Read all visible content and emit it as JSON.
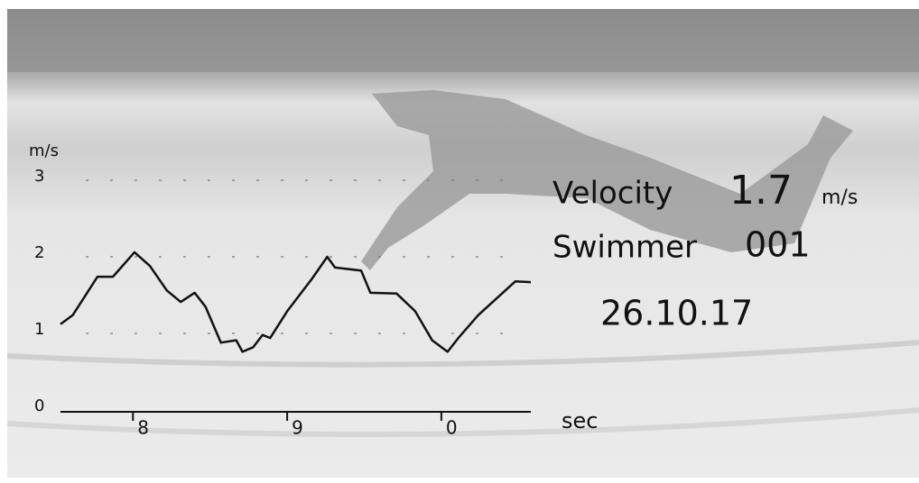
{
  "chart_data": {
    "type": "line",
    "y_label": "m/s",
    "x_label": "sec",
    "x": [
      7.53,
      7.61,
      7.77,
      7.87,
      8.01,
      8.11,
      8.22,
      8.31,
      8.4,
      8.47,
      8.57,
      8.67,
      8.71,
      8.78,
      8.84,
      8.89,
      9.0,
      9.16,
      9.26,
      9.31,
      9.48,
      9.54,
      9.71,
      9.83,
      9.94,
      10.04,
      10.11,
      10.24,
      10.48,
      10.58
    ],
    "values": [
      1.12,
      1.24,
      1.74,
      1.74,
      2.06,
      1.88,
      1.56,
      1.41,
      1.53,
      1.35,
      0.88,
      0.91,
      0.76,
      0.82,
      0.98,
      0.94,
      1.29,
      1.71,
      2.0,
      1.86,
      1.82,
      1.53,
      1.52,
      1.29,
      0.91,
      0.76,
      0.94,
      1.24,
      1.68,
      1.67
    ],
    "color": "#111111",
    "xlim": [
      7.53,
      10.58
    ],
    "ylim": [
      0,
      3
    ],
    "xticks": [
      8,
      9,
      {
        "value": 10,
        "label": "0"
      }
    ],
    "yticks": [
      0,
      1,
      2,
      3
    ],
    "grid": true,
    "annotations": {
      "velocity_label": "Velocity",
      "velocity_value": "1.7",
      "velocity_unit": "m/s",
      "swimmer_label": "Swimmer",
      "swimmer_id": "001",
      "date": "26.10.17"
    }
  }
}
